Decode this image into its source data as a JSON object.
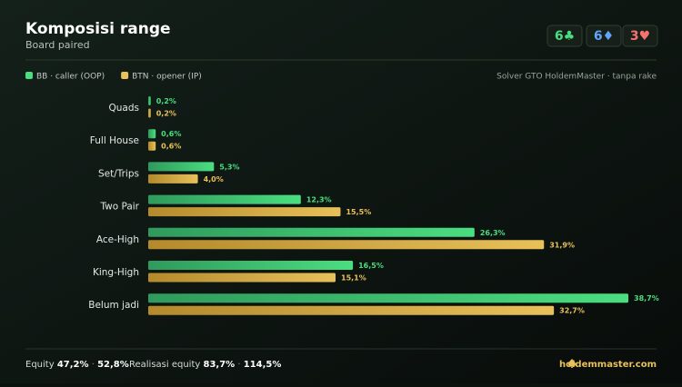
{
  "header": {
    "title": "Komposisi range",
    "subtitle": "Board paired",
    "cards": [
      {
        "label": "6♣",
        "color": "#4ade80"
      },
      {
        "label": "6♦",
        "color": "#60a5fa"
      },
      {
        "label": "3♥",
        "color": "#f87171"
      }
    ]
  },
  "source": "Solver GTO HoldemMaster · tanpa rake",
  "chart_data": {
    "type": "bar",
    "orientation": "horizontal",
    "categories": [
      "Quads",
      "Full House",
      "Set/Trips",
      "Two Pair",
      "Ace-High",
      "King-High",
      "Belum jadi"
    ],
    "series": [
      {
        "name": "BB · caller (OOP)",
        "color": "#4ade80",
        "values": [
          0.2,
          0.6,
          5.3,
          12.3,
          26.3,
          16.5,
          38.7
        ],
        "value_labels": [
          "0,2%",
          "0,6%",
          "5,3%",
          "12,3%",
          "26,3%",
          "16,5%",
          "38,7%"
        ]
      },
      {
        "name": "BTN · opener (IP)",
        "color": "#e8c15a",
        "values": [
          0.2,
          0.6,
          4.0,
          15.5,
          31.9,
          15.1,
          32.7
        ],
        "value_labels": [
          "0,2%",
          "0,6%",
          "4,0%",
          "15,5%",
          "31,9%",
          "15,1%",
          "32,7%"
        ]
      }
    ]
  },
  "footer": {
    "equity_label": "Equity",
    "equity_values": [
      "47,2%",
      "52,8%"
    ],
    "realization_label": "Realisasi equity",
    "realization_values": [
      "83,7%",
      "114,5%"
    ],
    "brand": "holdemmaster.com"
  }
}
